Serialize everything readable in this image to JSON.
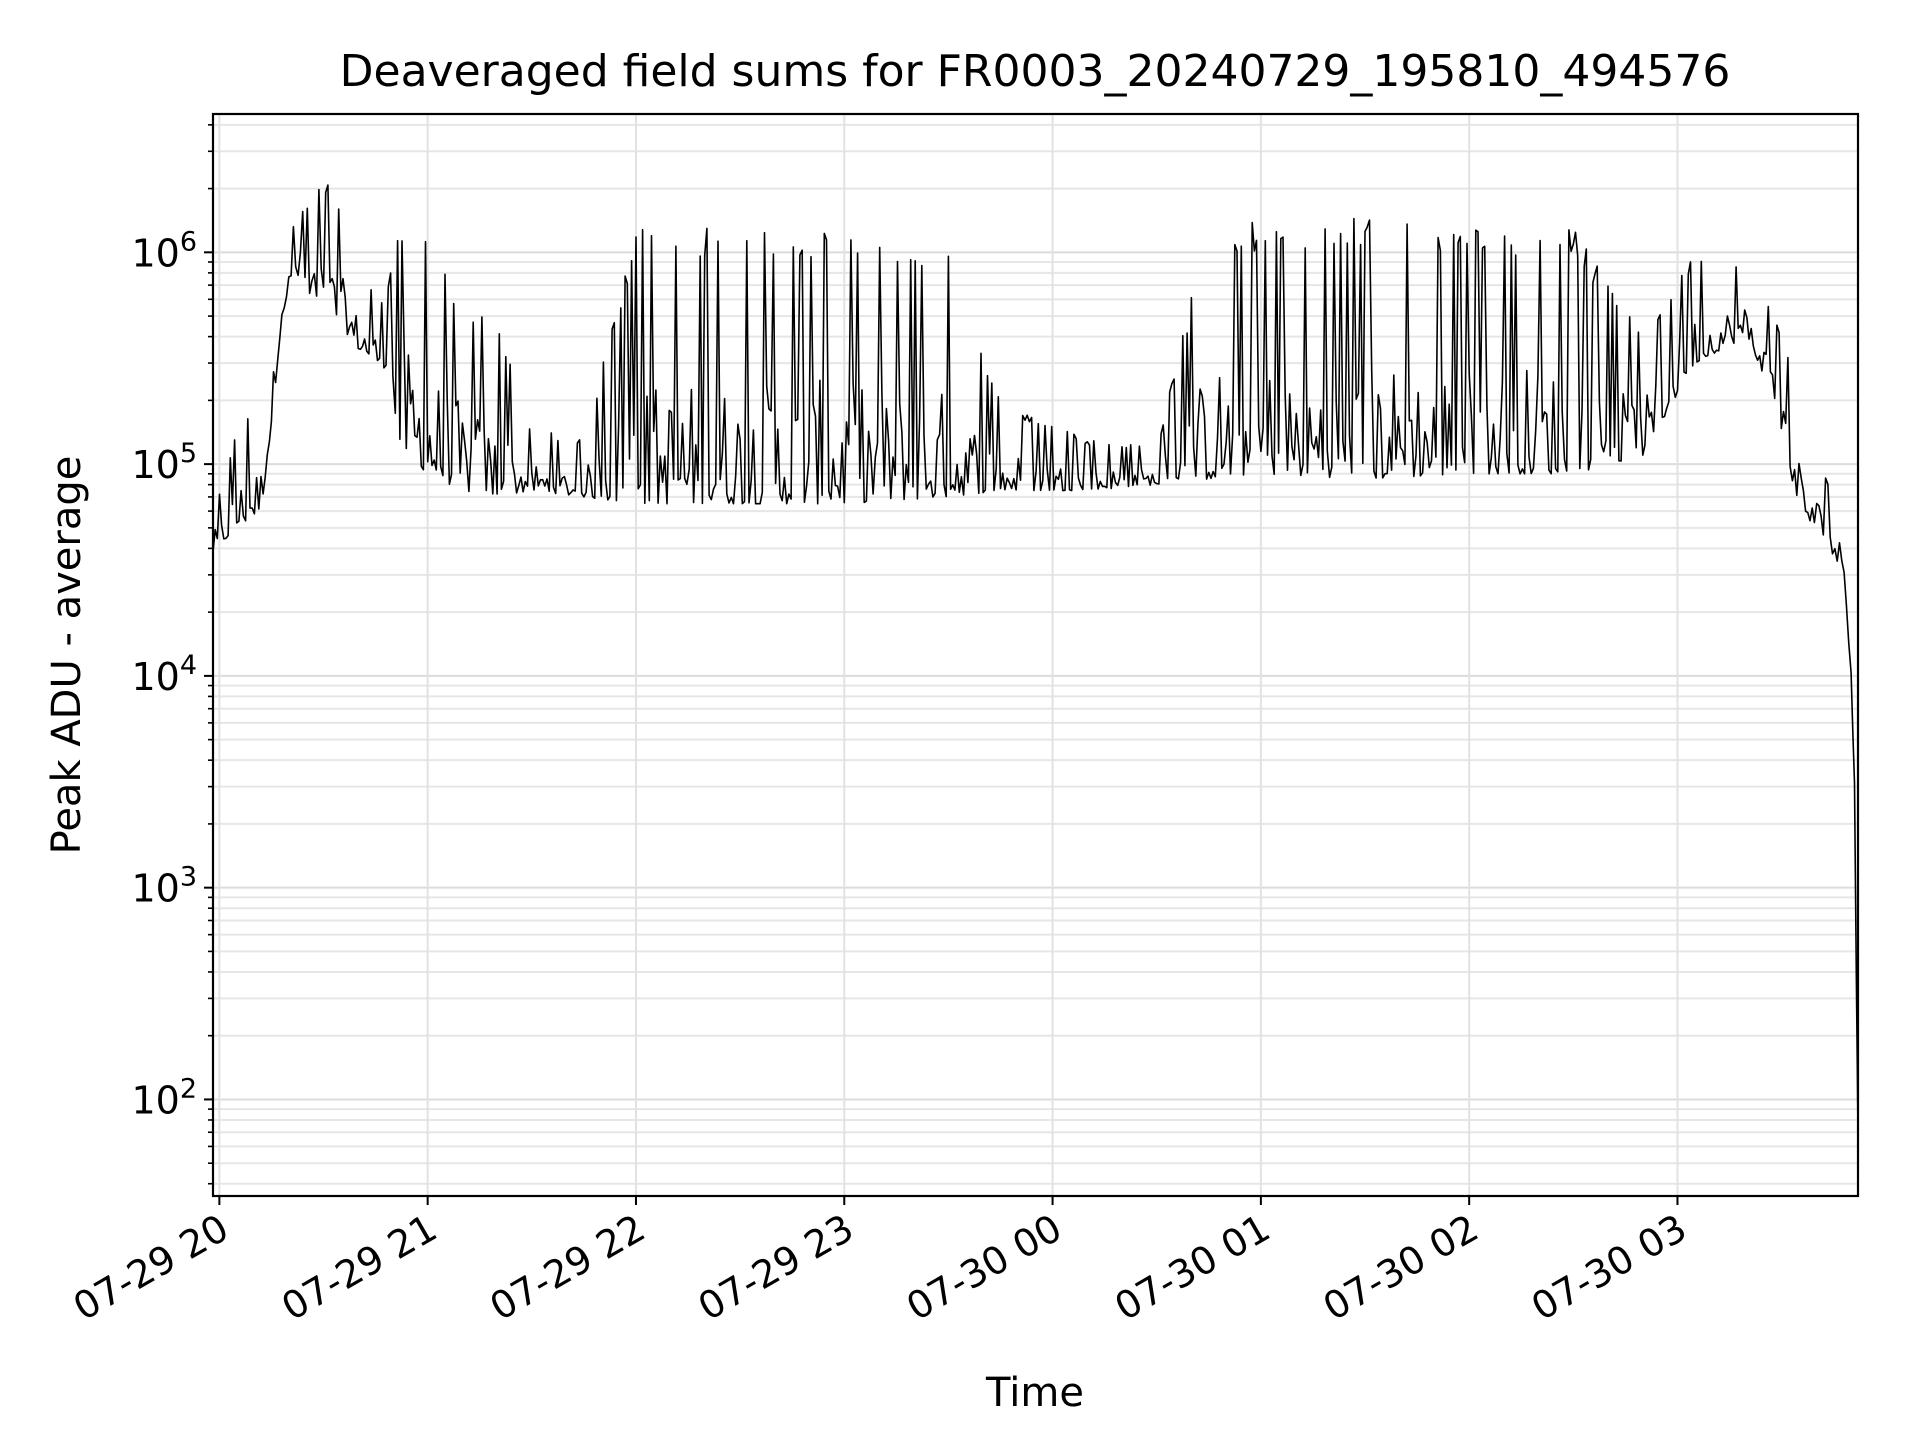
{
  "chart_data": {
    "type": "line",
    "title": "Deaveraged field sums for FR0003_20240729_195810_494576",
    "xlabel": "Time",
    "ylabel": "Peak ADU - average",
    "yscale": "log",
    "grid": true,
    "legend": "none",
    "x_start": "2024-07-29 19:58:10",
    "x_end": "2024-07-30 03:52:00",
    "ylim": [
      35,
      4500000
    ],
    "x_ticks": [
      {
        "label": "07-29 20",
        "time": "2024-07-29 20:00"
      },
      {
        "label": "07-29 21",
        "time": "2024-07-29 21:00"
      },
      {
        "label": "07-29 22",
        "time": "2024-07-29 22:00"
      },
      {
        "label": "07-29 23",
        "time": "2024-07-29 23:00"
      },
      {
        "label": "07-30 00",
        "time": "2024-07-30 00:00"
      },
      {
        "label": "07-30 01",
        "time": "2024-07-30 01:00"
      },
      {
        "label": "07-30 02",
        "time": "2024-07-30 02:00"
      },
      {
        "label": "07-30 03",
        "time": "2024-07-30 03:00"
      }
    ],
    "y_ticks": [
      {
        "base": "10",
        "exp": "2",
        "value": 100
      },
      {
        "base": "10",
        "exp": "3",
        "value": 1000
      },
      {
        "base": "10",
        "exp": "4",
        "value": 10000
      },
      {
        "base": "10",
        "exp": "5",
        "value": 100000
      },
      {
        "base": "10",
        "exp": "6",
        "value": 1000000
      }
    ],
    "series": [
      {
        "color": "#000000",
        "envelope": [
          {
            "time": "2024-07-29 19:58:10",
            "low": 38000,
            "high": 60000
          },
          {
            "time": "2024-07-29 20:05",
            "low": 50000,
            "high": 150000
          },
          {
            "time": "2024-07-29 20:12",
            "low": 60000,
            "high": 200000
          },
          {
            "time": "2024-07-29 20:15",
            "low": 150000,
            "high": 400000
          },
          {
            "time": "2024-07-29 20:18",
            "low": 500000,
            "high": 900000
          },
          {
            "time": "2024-07-29 20:22",
            "low": 800000,
            "high": 1500000
          },
          {
            "time": "2024-07-29 20:26",
            "low": 600000,
            "high": 1800000
          },
          {
            "time": "2024-07-29 20:30",
            "low": 500000,
            "high": 2400000
          },
          {
            "time": "2024-07-29 20:35",
            "low": 450000,
            "high": 1600000
          },
          {
            "time": "2024-07-29 20:40",
            "low": 350000,
            "high": 800000
          },
          {
            "time": "2024-07-29 20:48",
            "low": 280000,
            "high": 600000
          },
          {
            "time": "2024-07-29 20:52",
            "low": 120000,
            "high": 1500000
          },
          {
            "time": "2024-07-29 21:00",
            "low": 90000,
            "high": 1300000
          },
          {
            "time": "2024-07-29 21:10",
            "low": 75000,
            "high": 600000
          },
          {
            "time": "2024-07-29 21:20",
            "low": 70000,
            "high": 450000
          },
          {
            "time": "2024-07-29 21:30",
            "low": 75000,
            "high": 150000
          },
          {
            "time": "2024-07-29 21:45",
            "low": 70000,
            "high": 130000
          },
          {
            "time": "2024-07-29 22:00",
            "low": 65000,
            "high": 1300000
          },
          {
            "time": "2024-07-29 22:30",
            "low": 65000,
            "high": 1300000
          },
          {
            "time": "2024-07-29 23:00",
            "low": 65000,
            "high": 1300000
          },
          {
            "time": "2024-07-29 23:30",
            "low": 70000,
            "high": 1000000
          },
          {
            "time": "2024-07-29 23:45",
            "low": 75000,
            "high": 200000
          },
          {
            "time": "2024-07-30 00:10",
            "low": 75000,
            "high": 130000
          },
          {
            "time": "2024-07-30 00:30",
            "low": 80000,
            "high": 120000
          },
          {
            "time": "2024-07-30 00:45",
            "low": 85000,
            "high": 1400000
          },
          {
            "time": "2024-07-30 01:00",
            "low": 90000,
            "high": 1400000
          },
          {
            "time": "2024-07-30 01:30",
            "low": 85000,
            "high": 1500000
          },
          {
            "time": "2024-07-30 02:00",
            "low": 90000,
            "high": 1300000
          },
          {
            "time": "2024-07-30 02:30",
            "low": 90000,
            "high": 1300000
          },
          {
            "time": "2024-07-30 02:50",
            "low": 110000,
            "high": 400000
          },
          {
            "time": "2024-07-30 03:05",
            "low": 300000,
            "high": 1000000
          },
          {
            "time": "2024-07-30 03:20",
            "low": 400000,
            "high": 900000
          },
          {
            "time": "2024-07-30 03:28",
            "low": 200000,
            "high": 500000
          },
          {
            "time": "2024-07-30 03:35",
            "low": 60000,
            "high": 250000
          },
          {
            "time": "2024-07-30 03:42",
            "low": 45000,
            "high": 90000
          },
          {
            "time": "2024-07-30 03:48",
            "low": 30000,
            "high": 60000
          },
          {
            "time": "2024-07-30 03:50",
            "low": 10000,
            "high": 20000
          },
          {
            "time": "2024-07-30 03:51",
            "low": 3000,
            "high": 6000
          },
          {
            "time": "2024-07-30 03:52",
            "low": 50,
            "high": 100
          }
        ]
      }
    ]
  }
}
